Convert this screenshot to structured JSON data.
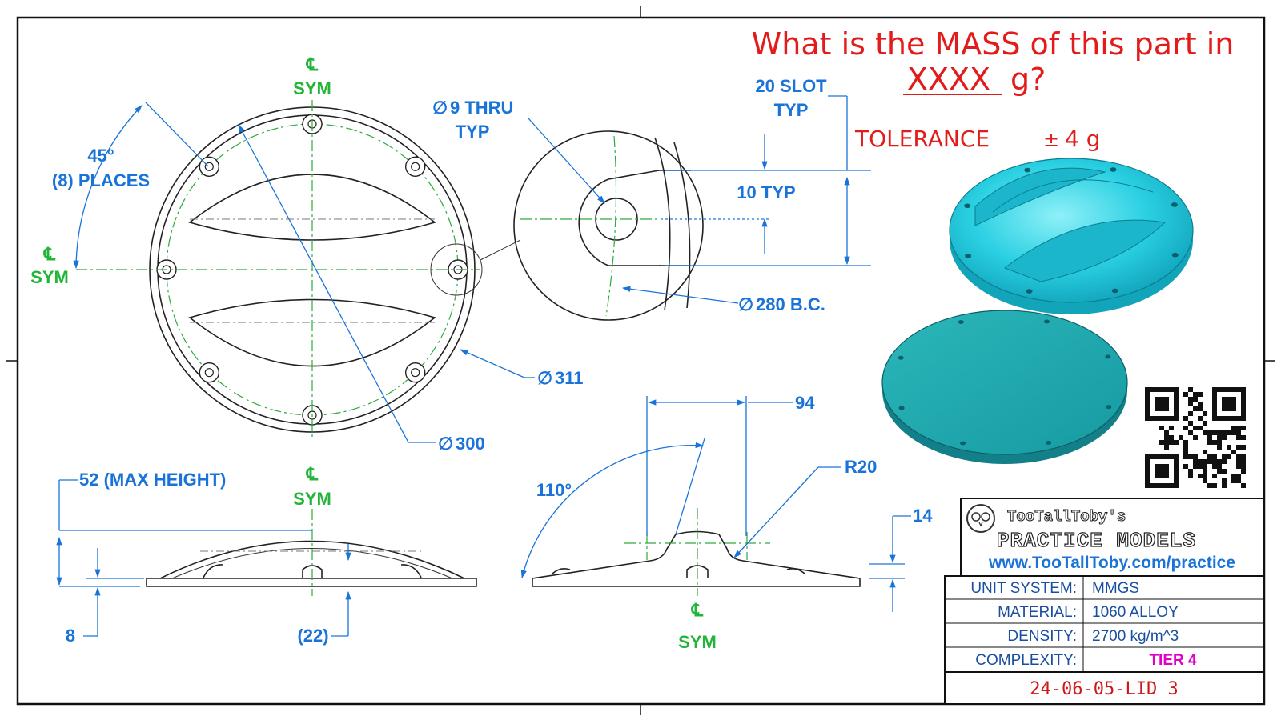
{
  "question": {
    "line1": "What is the MASS of this part in",
    "blank": "XXXX",
    "unit": "g?",
    "tolerance_label": "TOLERANCE",
    "tolerance_symbol": "±",
    "tolerance_value": "4 g"
  },
  "top_view": {
    "cl_symbol": "℄",
    "cl_label": "SYM",
    "angle_value": "45°",
    "angle_places": "(8) PLACES",
    "dia_311": "311",
    "dia_300": "300"
  },
  "detail_view": {
    "hole_note": "9 THRU",
    "hole_typ": "TYP",
    "slot_width": "20 SLOT",
    "slot_typ": "TYP",
    "slot_depth": "10 TYP",
    "bolt_circle": "280 B.C."
  },
  "side_view": {
    "max_height": "52 (MAX HEIGHT)",
    "base_thickness": "8",
    "ref_dim": "(22)"
  },
  "section_view": {
    "width": "94",
    "radius": "R20",
    "angle": "110°",
    "flange": "14"
  },
  "symbols": {
    "diameter": "∅"
  },
  "branding": {
    "name": "TooTallToby's",
    "product": "PRACTICE MODELS",
    "url": "www.TooTallToby.com/practice"
  },
  "title_block": {
    "rows": [
      {
        "label": "UNIT SYSTEM:",
        "value": "MMGS"
      },
      {
        "label": "MATERIAL:",
        "value": "1060 ALLOY"
      },
      {
        "label": "DENSITY:",
        "value": "2700 kg/m^3"
      },
      {
        "label": "COMPLEXITY:",
        "value": "TIER 4"
      }
    ],
    "drawing_id": "24-06-05-LID 3"
  },
  "colors": {
    "dimension": "#1a73d9",
    "centerline": "#22b53a",
    "question": "#e21b1b",
    "model": "#23c4d9",
    "tier": "#e000c8"
  },
  "icons": [
    "qr-code-icon",
    "owl-logo-icon",
    "diameter-symbol-icon"
  ]
}
